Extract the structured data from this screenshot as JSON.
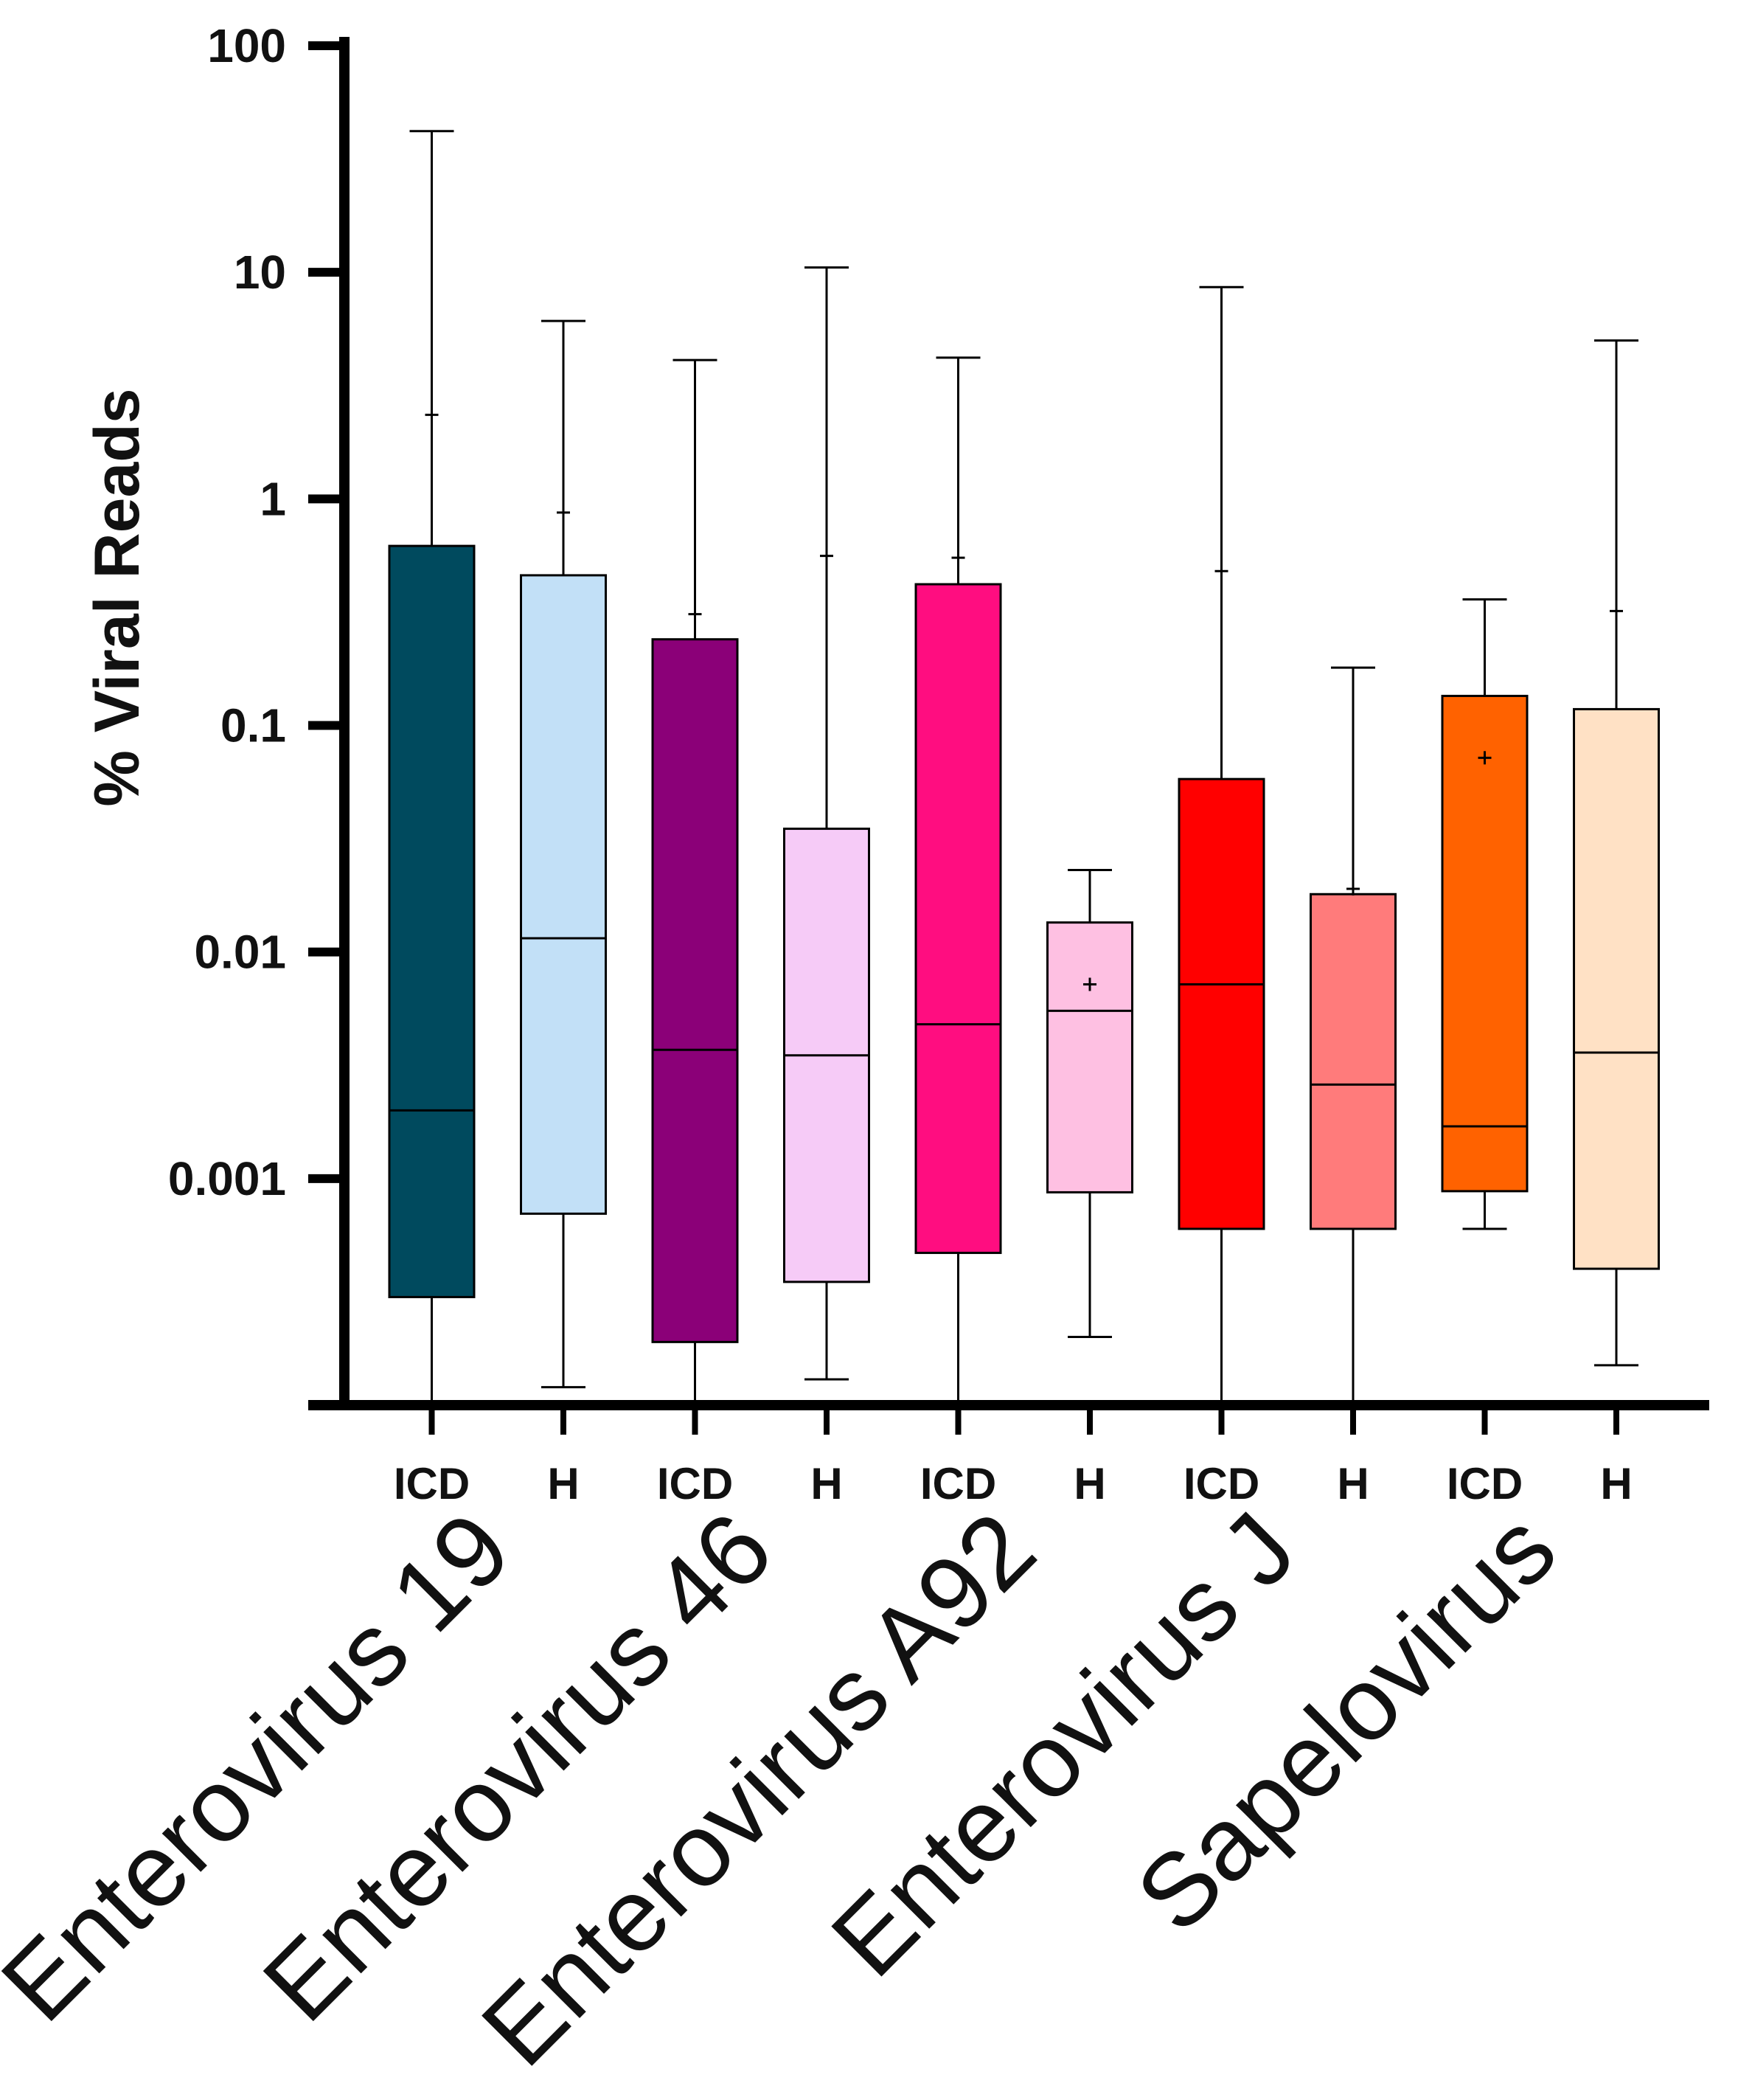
{
  "chart_data": {
    "type": "box",
    "ylabel": "% Viral Reads",
    "yscale": "log",
    "ylim": [
      0.0001,
      100
    ],
    "yticks": [
      {
        "value": 0.001,
        "label": "0.001"
      },
      {
        "value": 0.01,
        "label": "0.01"
      },
      {
        "value": 0.1,
        "label": "0.1"
      },
      {
        "value": 1,
        "label": "1"
      },
      {
        "value": 10,
        "label": "10"
      },
      {
        "value": 100,
        "label": "100"
      }
    ],
    "viruses": [
      "Enterovirus 19",
      "Enterovirus 46",
      "Enterovirus A92",
      "Enterovirus J",
      "Sapelovirus"
    ],
    "boxes": [
      {
        "virus": "Enterovirus 19",
        "group": "ICD",
        "color": "#004A5E",
        "min": 0.0001,
        "q1": 0.0003,
        "median": 0.002,
        "q3": 0.62,
        "max": 42,
        "mean": 2.35
      },
      {
        "virus": "Enterovirus 19",
        "group": "H",
        "color": "#C2E0F7",
        "min": 0.00012,
        "q1": 0.0007,
        "median": 0.0115,
        "q3": 0.46,
        "max": 6.1,
        "mean": 0.87
      },
      {
        "virus": "Enterovirus 46",
        "group": "ICD",
        "color": "#8B0078",
        "min": 0.0001,
        "q1": 0.00019,
        "median": 0.0037,
        "q3": 0.24,
        "max": 4.1,
        "mean": 0.31
      },
      {
        "virus": "Enterovirus 46",
        "group": "H",
        "color": "#F6CBF7",
        "min": 0.00013,
        "q1": 0.00035,
        "median": 0.0035,
        "q3": 0.035,
        "max": 10.5,
        "mean": 0.56
      },
      {
        "virus": "Enterovirus A92",
        "group": "ICD",
        "color": "#FF0D80",
        "min": 0.0001,
        "q1": 0.00047,
        "median": 0.0048,
        "q3": 0.42,
        "max": 4.2,
        "mean": 0.55
      },
      {
        "virus": "Enterovirus A92",
        "group": "H",
        "color": "#FEC0E2",
        "min": 0.0002,
        "q1": 0.00087,
        "median": 0.0055,
        "q3": 0.0135,
        "max": 0.023,
        "mean": 0.0072
      },
      {
        "virus": "Enterovirus J",
        "group": "ICD",
        "color": "#FF0000",
        "min": 0.0001,
        "q1": 0.0006,
        "median": 0.0072,
        "q3": 0.058,
        "max": 8.6,
        "mean": 0.48
      },
      {
        "virus": "Enterovirus J",
        "group": "H",
        "color": "#FF7B7B",
        "min": 0.0001,
        "q1": 0.0006,
        "median": 0.0026,
        "q3": 0.018,
        "max": 0.18,
        "mean": 0.019
      },
      {
        "virus": "Sapelovirus",
        "group": "ICD",
        "color": "#FF6200",
        "min": 0.0006,
        "q1": 0.00088,
        "median": 0.0017,
        "q3": 0.135,
        "max": 0.36,
        "mean": 0.072
      },
      {
        "virus": "Sapelovirus",
        "group": "H",
        "color": "#FFE1C5",
        "min": 0.00015,
        "q1": 0.0004,
        "median": 0.0036,
        "q3": 0.118,
        "max": 5.0,
        "mean": 0.32
      }
    ]
  }
}
